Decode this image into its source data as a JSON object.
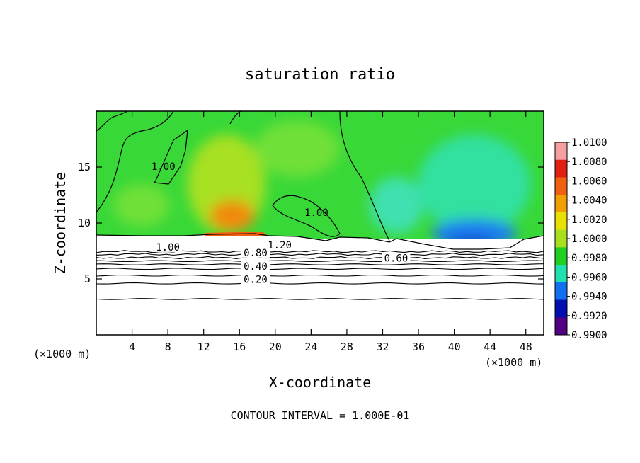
{
  "chart_data": {
    "type": "heatmap",
    "title": "saturation ratio",
    "xlabel": "X-coordinate",
    "ylabel": "Z-coordinate",
    "x_unit_left": "(×1000 m)",
    "x_unit_right": "(×1000 m)",
    "xlim": [
      0,
      50
    ],
    "ylim": [
      0,
      20
    ],
    "x_ticks": [
      4,
      8,
      12,
      16,
      20,
      24,
      28,
      32,
      36,
      40,
      44,
      48
    ],
    "x_tick_labels": [
      "4",
      "8",
      "12",
      "16",
      "20",
      "24",
      "28",
      "32",
      "36",
      "40",
      "44",
      "48"
    ],
    "y_ticks": [
      5,
      10,
      15
    ],
    "y_tick_labels": [
      "5",
      "10",
      "15"
    ],
    "colorbar": {
      "min": 0.99,
      "max": 1.01,
      "labels": [
        "1.0100",
        "1.0080",
        "1.0060",
        "1.0040",
        "1.0020",
        "1.0000",
        "0.9980",
        "0.9960",
        "0.9940",
        "0.9920",
        "0.9900"
      ],
      "colors": [
        "#f4a0a0",
        "#e02010",
        "#f06010",
        "#f0a000",
        "#e8e000",
        "#a8e020",
        "#20d020",
        "#20e0b0",
        "#1070f0",
        "#0010b0",
        "#500080"
      ]
    },
    "contour_labels": [
      {
        "text": "1.00",
        "x": 7.5,
        "z": 14.8
      },
      {
        "text": "1.00",
        "x": 24.6,
        "z": 10.7
      },
      {
        "text": "1.00",
        "x": 8.0,
        "z": 7.6
      },
      {
        "text": "1.20",
        "x": 20.5,
        "z": 7.8
      },
      {
        "text": "0.80",
        "x": 17.8,
        "z": 7.1
      },
      {
        "text": "0.60",
        "x": 33.5,
        "z": 6.6
      },
      {
        "text": "0.40",
        "x": 17.8,
        "z": 5.9
      },
      {
        "text": "0.20",
        "x": 17.8,
        "z": 4.7
      }
    ],
    "lower_contours": [
      {
        "level": 0.1,
        "z": 3.2
      },
      {
        "level": 0.2,
        "z": 4.6
      },
      {
        "level": 0.3,
        "z": 5.3
      },
      {
        "level": 0.4,
        "z": 5.9
      },
      {
        "level": 0.5,
        "z": 6.3
      },
      {
        "level": 0.6,
        "z": 6.6
      },
      {
        "level": 0.7,
        "z": 6.9
      },
      {
        "level": 0.8,
        "z": 7.2
      },
      {
        "level": 0.9,
        "z": 7.45
      }
    ],
    "footer": "CONTOUR INTERVAL = 1.000E-01"
  }
}
